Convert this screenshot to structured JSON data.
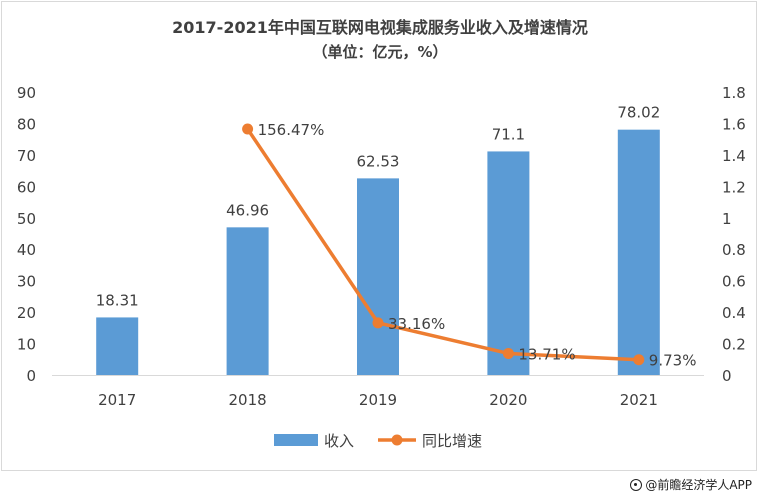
{
  "chart_data": {
    "type": "bar",
    "title": "2017-2021年中国互联网电视集成服务业收入及增速情况",
    "subtitle": "（单位：亿元，%）",
    "categories": [
      "2017",
      "2018",
      "2019",
      "2020",
      "2021"
    ],
    "series": [
      {
        "name": "收入",
        "type": "bar",
        "axis": "left",
        "color": "#5b9bd5",
        "values": [
          18.31,
          46.96,
          62.53,
          71.1,
          78.02
        ],
        "labels": [
          "18.31",
          "46.96",
          "62.53",
          "71.1",
          "78.02"
        ]
      },
      {
        "name": "同比增速",
        "type": "line",
        "axis": "right",
        "color": "#ed7d31",
        "values": [
          null,
          1.5647,
          0.3316,
          0.1371,
          0.0973
        ],
        "labels": [
          "",
          "156.47%",
          "33.16%",
          "13.71%",
          "9.73%"
        ]
      }
    ],
    "y_left": {
      "ylim": [
        0,
        90
      ],
      "ticks": [
        "0",
        "10",
        "20",
        "30",
        "40",
        "50",
        "60",
        "70",
        "80",
        "90"
      ]
    },
    "y_right": {
      "ylim": [
        0,
        1.8
      ],
      "ticks": [
        "0",
        "0.2",
        "0.4",
        "0.6",
        "0.8",
        "1",
        "1.2",
        "1.4",
        "1.6",
        "1.8"
      ]
    },
    "grid": false,
    "legend": "bottom"
  },
  "watermark": "@前瞻经济学人APP"
}
